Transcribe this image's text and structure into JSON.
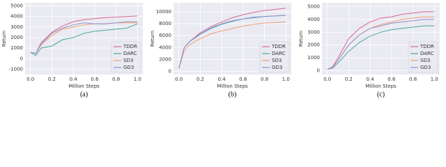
{
  "chart_data": [
    {
      "type": "line",
      "caption": "(a)",
      "xlabel": "Million Steps",
      "ylabel": "Return",
      "x": [
        0,
        0.05,
        0.1,
        0.2,
        0.3,
        0.4,
        0.5,
        0.6,
        0.7,
        0.8,
        0.9,
        1.0
      ],
      "series": [
        {
          "name": "TDDR",
          "color": "#d6668e",
          "values": [
            600,
            500,
            1500,
            2500,
            3100,
            3500,
            3700,
            3800,
            3900,
            3950,
            4000,
            4050
          ]
        },
        {
          "name": "DARC",
          "color": "#4aa89a",
          "values": [
            600,
            300,
            1000,
            1200,
            1800,
            2000,
            2400,
            2600,
            2700,
            2800,
            2900,
            3300
          ]
        },
        {
          "name": "SD3",
          "color": "#efa06e",
          "values": [
            600,
            500,
            1300,
            2200,
            2800,
            3000,
            3200,
            3300,
            3300,
            3400,
            3400,
            3400
          ]
        },
        {
          "name": "GD3",
          "color": "#8f8fd2",
          "values": [
            600,
            500,
            1400,
            2400,
            2900,
            3200,
            3400,
            3300,
            3300,
            3400,
            3500,
            3500
          ]
        }
      ],
      "xlim": [
        -0.05,
        1.05
      ],
      "ylim": [
        -1500,
        5300
      ],
      "xticks": [
        {
          "value": 0,
          "label": "0.0"
        },
        0.2,
        0.4,
        0.6,
        0.8,
        {
          "value": 1,
          "label": "1.0"
        }
      ],
      "yticks": [
        -1000,
        0,
        1000,
        2000,
        3000,
        4000,
        5000
      ],
      "grid": true,
      "legend": "lower right"
    },
    {
      "type": "line",
      "caption": "(b)",
      "xlabel": "Million Steps",
      "ylabel": "Return",
      "x": [
        0,
        0.05,
        0.1,
        0.2,
        0.3,
        0.4,
        0.5,
        0.6,
        0.7,
        0.8,
        0.9,
        1.0
      ],
      "series": [
        {
          "name": "TDDR",
          "color": "#d6668e",
          "values": [
            500,
            4000,
            5000,
            6500,
            7500,
            8300,
            9000,
            9500,
            9900,
            10200,
            10400,
            10600
          ]
        },
        {
          "name": "DARC",
          "color": "#4aa89a",
          "values": [
            500,
            4000,
            5000,
            6200,
            7200,
            7900,
            8400,
            8800,
            9000,
            9200,
            9300,
            9400
          ]
        },
        {
          "name": "SD3",
          "color": "#efa06e",
          "values": [
            500,
            3500,
            4500,
            5500,
            6300,
            6800,
            7200,
            7600,
            7900,
            8100,
            8200,
            8300
          ]
        },
        {
          "name": "GD3",
          "color": "#8f8fd2",
          "values": [
            500,
            4000,
            5000,
            6300,
            7300,
            8000,
            8500,
            8800,
            9100,
            9200,
            9300,
            9400
          ]
        }
      ],
      "xlim": [
        -0.05,
        1.05
      ],
      "ylim": [
        -500,
        11500
      ],
      "xticks": [
        {
          "value": 0,
          "label": "0.0"
        },
        0.2,
        0.4,
        0.6,
        0.8,
        {
          "value": 1,
          "label": "1.0"
        }
      ],
      "yticks": [
        0,
        2000,
        4000,
        6000,
        8000,
        10000
      ],
      "grid": true,
      "legend": "lower right"
    },
    {
      "type": "line",
      "caption": "(c)",
      "xlabel": "Million Steps",
      "ylabel": "Return",
      "x": [
        0,
        0.05,
        0.1,
        0.2,
        0.3,
        0.4,
        0.5,
        0.6,
        0.7,
        0.8,
        0.9,
        1.0
      ],
      "series": [
        {
          "name": "TDDR",
          "color": "#d6668e",
          "values": [
            100,
            300,
            1000,
            2500,
            3300,
            3800,
            4100,
            4200,
            4400,
            4500,
            4600,
            4600
          ]
        },
        {
          "name": "DARC",
          "color": "#4aa89a",
          "values": [
            100,
            200,
            600,
            1500,
            2200,
            2700,
            3000,
            3200,
            3300,
            3400,
            3500,
            3500
          ]
        },
        {
          "name": "SD3",
          "color": "#efa06e",
          "values": [
            100,
            250,
            800,
            2000,
            2800,
            3300,
            3600,
            3800,
            4000,
            4100,
            4200,
            4200
          ]
        },
        {
          "name": "GD3",
          "color": "#8f8fd2",
          "values": [
            100,
            250,
            800,
            2000,
            2800,
            3300,
            3500,
            3700,
            3800,
            3900,
            4000,
            4000
          ]
        }
      ],
      "xlim": [
        -0.05,
        1.05
      ],
      "ylim": [
        -300,
        5300
      ],
      "xticks": [
        {
          "value": 0,
          "label": "0.0"
        },
        0.2,
        0.4,
        0.6,
        0.8,
        {
          "value": 1,
          "label": "1.0"
        }
      ],
      "yticks": [
        0,
        1000,
        2000,
        3000,
        4000,
        5000
      ],
      "grid": true,
      "legend": "lower right"
    }
  ]
}
